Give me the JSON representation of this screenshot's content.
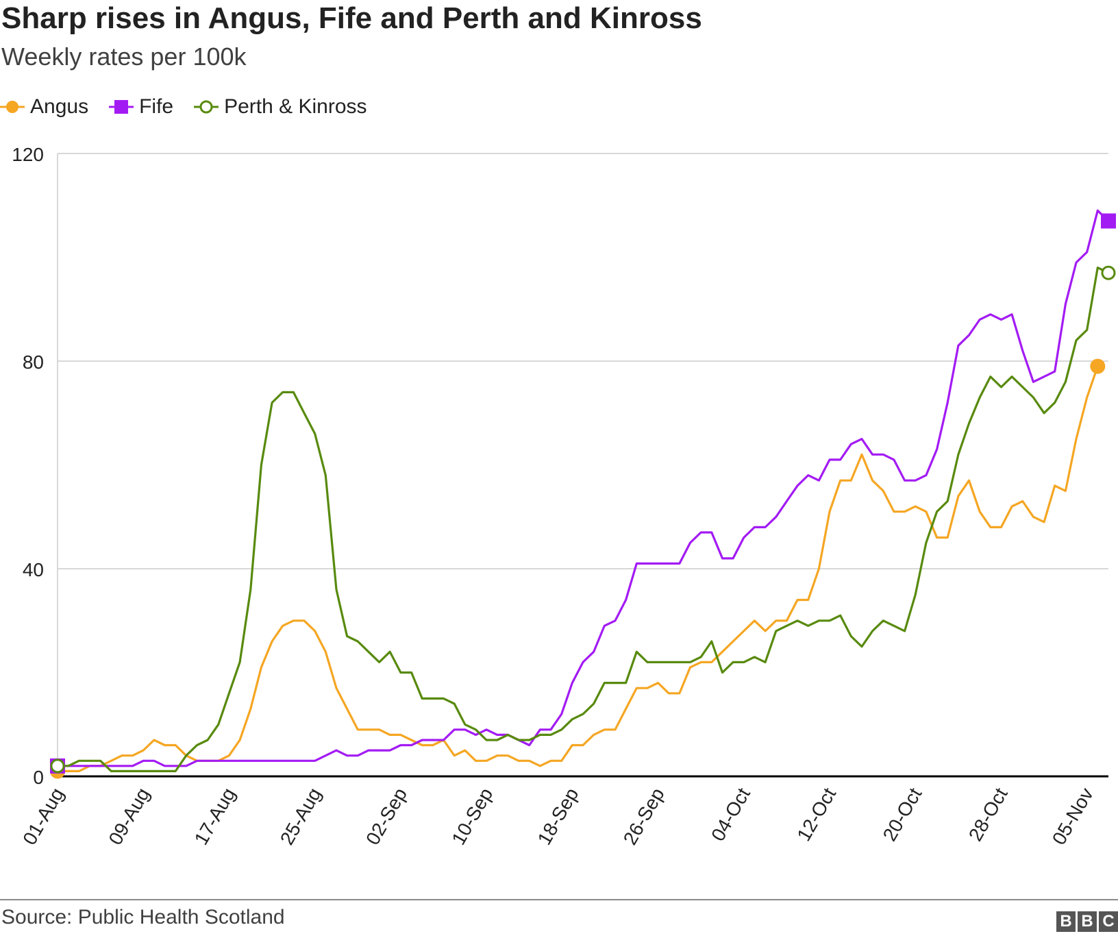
{
  "title": "Sharp rises in Angus, Fife and Perth and Kinross",
  "subtitle": "Weekly rates per 100k",
  "source": "Source: Public Health Scotland",
  "logo_text": "BBC",
  "colors": {
    "angus": "#F5A623",
    "fife": "#A31BF3",
    "perth": "#588A0E",
    "grid": "#cccccc",
    "axis": "#000000"
  },
  "chart_data": {
    "type": "line",
    "x_start_label": "01-Aug",
    "ylim": [
      0,
      120
    ],
    "yticks": [
      0,
      40,
      80,
      120
    ],
    "xticks": [
      {
        "label": "01-Aug",
        "day": 0
      },
      {
        "label": "09-Aug",
        "day": 8
      },
      {
        "label": "17-Aug",
        "day": 16
      },
      {
        "label": "25-Aug",
        "day": 24
      },
      {
        "label": "02-Sep",
        "day": 32
      },
      {
        "label": "10-Sep",
        "day": 40
      },
      {
        "label": "18-Sep",
        "day": 48
      },
      {
        "label": "26-Sep",
        "day": 56
      },
      {
        "label": "04-Oct",
        "day": 64
      },
      {
        "label": "12-Oct",
        "day": 72
      },
      {
        "label": "20-Oct",
        "day": 80
      },
      {
        "label": "28-Oct",
        "day": 88
      },
      {
        "label": "05-Nov",
        "day": 96
      }
    ],
    "legend_position": "top-left",
    "grid": true,
    "series": [
      {
        "name": "Angus",
        "key": "angus",
        "marker": "circle-filled",
        "values": [
          1,
          1,
          1,
          2,
          2,
          3,
          4,
          4,
          5,
          7,
          6,
          6,
          4,
          3,
          3,
          3,
          4,
          7,
          13,
          21,
          26,
          29,
          30,
          30,
          28,
          24,
          17,
          13,
          9,
          9,
          9,
          8,
          8,
          7,
          6,
          6,
          7,
          4,
          5,
          3,
          3,
          4,
          4,
          3,
          3,
          2,
          3,
          3,
          6,
          6,
          8,
          9,
          9,
          13,
          17,
          17,
          18,
          16,
          16,
          21,
          22,
          22,
          24,
          26,
          28,
          30,
          28,
          30,
          30,
          34,
          34,
          40,
          51,
          57,
          57,
          62,
          57,
          55,
          51,
          51,
          52,
          51,
          46,
          46,
          54,
          57,
          51,
          48,
          48,
          52,
          53,
          50,
          49,
          56,
          55,
          65,
          73,
          79
        ]
      },
      {
        "name": "Fife",
        "key": "fife",
        "marker": "square-filled",
        "values": [
          2,
          2,
          2,
          2,
          2,
          2,
          2,
          2,
          3,
          3,
          2,
          2,
          2,
          3,
          3,
          3,
          3,
          3,
          3,
          3,
          3,
          3,
          3,
          3,
          3,
          4,
          5,
          4,
          4,
          5,
          5,
          5,
          6,
          6,
          7,
          7,
          7,
          9,
          9,
          8,
          9,
          8,
          8,
          7,
          6,
          9,
          9,
          12,
          18,
          22,
          24,
          29,
          30,
          34,
          41,
          41,
          41,
          41,
          41,
          45,
          47,
          47,
          42,
          42,
          46,
          48,
          48,
          50,
          53,
          56,
          58,
          57,
          61,
          61,
          64,
          65,
          62,
          62,
          61,
          57,
          57,
          58,
          63,
          72,
          83,
          85,
          88,
          89,
          88,
          89,
          82,
          76,
          77,
          78,
          91,
          99,
          101,
          109,
          107
        ]
      },
      {
        "name": "Perth & Kinross",
        "key": "perth",
        "marker": "circle-open",
        "values": [
          2,
          2,
          3,
          3,
          3,
          1,
          1,
          1,
          1,
          1,
          1,
          1,
          4,
          6,
          7,
          10,
          16,
          22,
          36,
          60,
          72,
          74,
          74,
          70,
          66,
          58,
          36,
          27,
          26,
          24,
          22,
          24,
          20,
          20,
          15,
          15,
          15,
          14,
          10,
          9,
          7,
          7,
          8,
          7,
          7,
          8,
          8,
          9,
          11,
          12,
          14,
          18,
          18,
          18,
          24,
          22,
          22,
          22,
          22,
          22,
          23,
          26,
          20,
          22,
          22,
          23,
          22,
          28,
          29,
          30,
          29,
          30,
          30,
          31,
          27,
          25,
          28,
          30,
          29,
          28,
          35,
          45,
          51,
          53,
          62,
          68,
          73,
          77,
          75,
          77,
          75,
          73,
          70,
          72,
          76,
          84,
          86,
          98,
          97
        ]
      }
    ]
  }
}
